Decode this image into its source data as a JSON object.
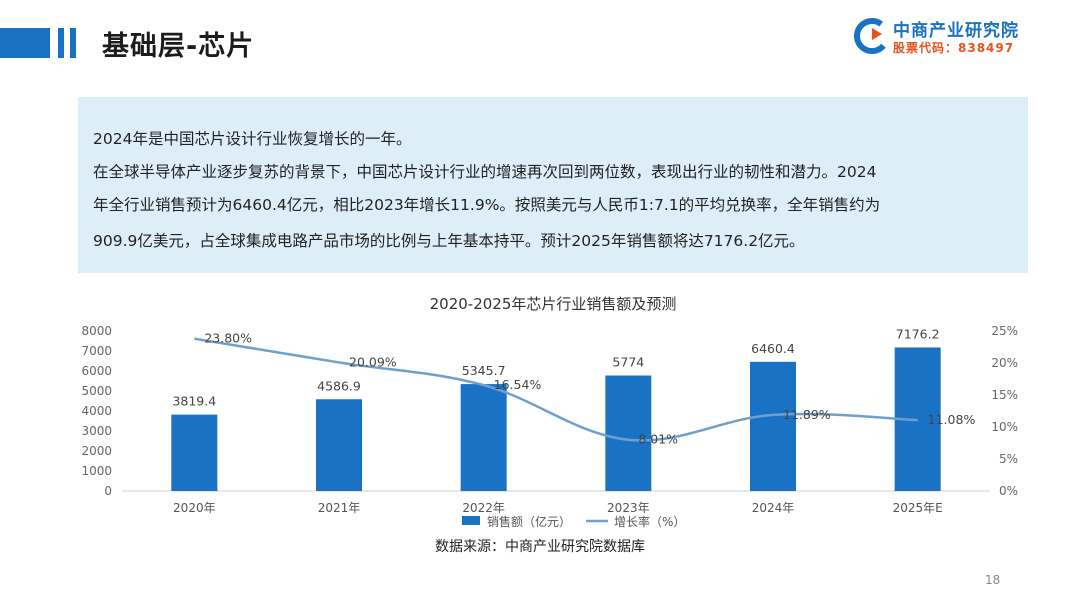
{
  "header": {
    "title": "基础层-芯片",
    "brand_name": "中商产业研究院",
    "stock_code": "股票代码：838497"
  },
  "summary": {
    "lines": [
      "2024年是中国芯片设计行业恢复增长的一年。",
      "在全球半导体产业逐步复苏的背景下，中国芯片设计行业的增速再次回到两位数，表现出行业的韧性和潜力。2024",
      "年全行业销售预计为6460.4亿元，相比2023年增长11.9%。按照美元与人民币1:7.1的平均兑换率，全年销售约为",
      "909.9亿美元，占全球集成电路产品市场的比例与上年基本持平。预计2025年销售额将达7176.2亿元。"
    ]
  },
  "chart_data": {
    "type": "bar",
    "title": "2020-2025年芯片行业销售额及预测",
    "categories": [
      "2020年",
      "2021年",
      "2022年",
      "2023年",
      "2024年",
      "2025年E"
    ],
    "series": [
      {
        "name": "销售额（亿元）",
        "type": "bar",
        "axis": "left",
        "values": [
          3819.4,
          4586.9,
          5345.7,
          5774,
          6460.4,
          7176.2
        ],
        "labels": [
          "3819.4",
          "4586.9",
          "5345.7",
          "5774",
          "6460.4",
          "7176.2"
        ]
      },
      {
        "name": "增长率（%）",
        "type": "line",
        "axis": "right",
        "values": [
          23.8,
          20.09,
          16.54,
          8.01,
          11.89,
          11.08
        ],
        "labels": [
          "23.80%",
          "20.09%",
          "16.54%",
          "8.01%",
          "11.89%",
          "11.08%"
        ]
      }
    ],
    "ylim_left": [
      0,
      8000
    ],
    "yticks_left": [
      "0",
      "1000",
      "2000",
      "3000",
      "4000",
      "5000",
      "6000",
      "7000",
      "8000"
    ],
    "ylim_right": [
      0,
      25
    ],
    "yticks_right": [
      "0%",
      "5%",
      "10%",
      "15%",
      "20%",
      "25%"
    ],
    "grid": false,
    "legend_position": "bottom",
    "source": "数据来源：中商产业研究院数据库",
    "colors": {
      "bar": "#1a72c4",
      "line": "#6f9fcd"
    }
  },
  "page_number": "18"
}
